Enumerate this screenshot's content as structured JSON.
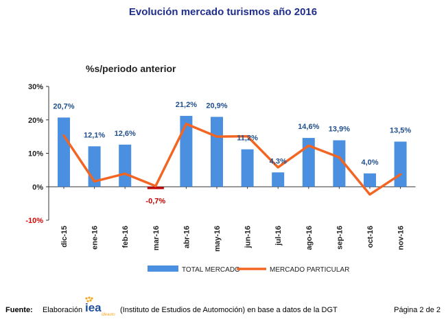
{
  "title": "Evolución mercado turismos año 2016",
  "subtitle": "%s/periodo anterior",
  "chart_data": {
    "type": "bar",
    "categories": [
      "dic-15",
      "ene-16",
      "feb-16",
      "mar-16",
      "abr-16",
      "may-16",
      "jun-16",
      "jul-16",
      "ago-16",
      "sep-16",
      "oct-16",
      "nov-16"
    ],
    "series": [
      {
        "name": "TOTAL MERCADO",
        "type": "bar",
        "color": "#4A8FE0",
        "values": [
          20.7,
          12.1,
          12.6,
          -0.7,
          21.2,
          20.9,
          11.2,
          4.3,
          14.6,
          13.9,
          4.0,
          13.5
        ],
        "labels": [
          "20,7%",
          "12,1%",
          "12,6%",
          "-0,7%",
          "21,2%",
          "20,9%",
          "11,2%",
          "4,3%",
          "14,6%",
          "13,9%",
          "4,0%",
          "13,5%"
        ]
      },
      {
        "name": "MERCADO PARTICULAR",
        "type": "line",
        "color": "#F26522",
        "values": [
          15.3,
          1.6,
          3.9,
          0.2,
          18.8,
          15.0,
          15.1,
          5.8,
          12.3,
          8.8,
          -2.3,
          3.7
        ]
      }
    ],
    "yticks": [
      {
        "value": 30,
        "label": "30%"
      },
      {
        "value": 20,
        "label": "20%"
      },
      {
        "value": 10,
        "label": "10%"
      },
      {
        "value": 0,
        "label": "0%"
      },
      {
        "value": -10,
        "label": "-10%"
      }
    ],
    "ylim": [
      -10,
      30
    ],
    "grid": false,
    "legend_position": "bottom",
    "negative_color": "#C00000",
    "label_color": "#1F4E8C",
    "axis_color": "#333333",
    "negative_tick_color": "#E00000"
  },
  "footer": {
    "label": "Fuente:",
    "elaboracion": "Elaboración",
    "logo_text": "iea",
    "logo_subtext": "ideauto",
    "description": "(Instituto de Estudios de Automoción) en base a datos de la DGT",
    "page": "Página 2 de 2"
  }
}
